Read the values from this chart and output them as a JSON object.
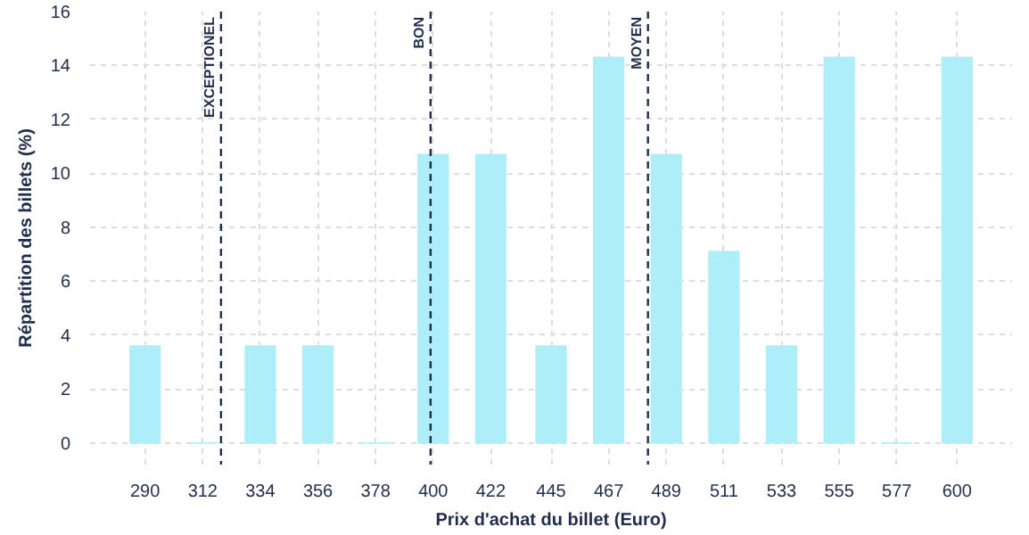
{
  "chart_data": {
    "type": "bar",
    "xlabel": "Prix d'achat du billet (Euro)",
    "ylabel": "Répartition des billets (%)",
    "x": [
      290,
      312,
      334,
      356,
      378,
      400,
      422,
      445,
      467,
      489,
      511,
      533,
      555,
      577,
      600
    ],
    "values": [
      3.6,
      0,
      3.6,
      3.6,
      0,
      10.7,
      10.7,
      3.6,
      14.3,
      10.7,
      7.1,
      3.6,
      14.3,
      0,
      14.3
    ],
    "color": "#aeeef8",
    "xlim": [
      269,
      621
    ],
    "xticks": [
      290,
      312,
      334,
      356,
      378,
      400,
      422,
      445,
      467,
      489,
      511,
      533,
      555,
      577,
      600
    ],
    "ylim": [
      -0.8,
      16
    ],
    "yticks": [
      0,
      2,
      4,
      6,
      8,
      10,
      12,
      14,
      16
    ],
    "grid": true,
    "ref_lines": [
      {
        "axis": "x",
        "value": 319,
        "label": "EXCEPTIONEL",
        "color": "#1f2d4a",
        "line_style": "dashed"
      },
      {
        "axis": "x",
        "value": 399,
        "label": "BON",
        "color": "#1f2d4a",
        "line_style": "dashed"
      },
      {
        "axis": "x",
        "value": 482,
        "label": "MOYEN",
        "color": "#1f2d4a",
        "line_style": "dashed"
      }
    ]
  }
}
